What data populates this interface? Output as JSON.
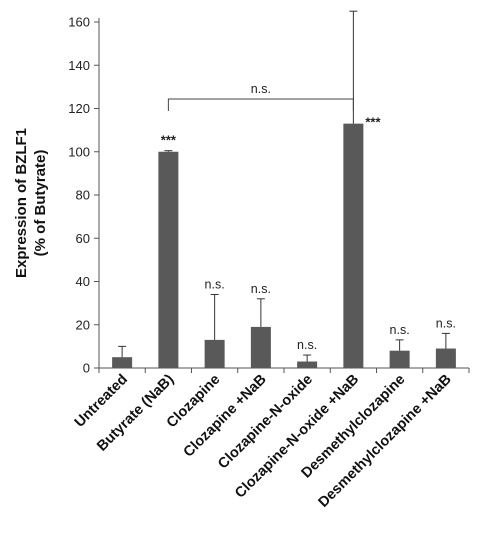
{
  "chart_data": {
    "type": "bar",
    "categories": [
      "Untreated",
      "Butyrate (NaB)",
      "Clozapine",
      "Clozapine +NaB",
      "Clozapine-N-oxide",
      "Clozapine-N-oxide +NaB",
      "Desmethylclozapine",
      "Desmethylclozapine +NaB"
    ],
    "values": [
      5,
      100,
      13,
      19,
      3,
      113,
      8,
      9
    ],
    "errors": [
      5,
      0.5,
      21,
      13,
      3,
      52,
      5,
      7
    ],
    "annotations": [
      "",
      "***",
      "n.s.",
      "n.s.",
      "n.s.",
      "***",
      "n.s.",
      "n.s."
    ],
    "bracket": {
      "from": 1,
      "to": 5,
      "label": "n.s."
    },
    "ylabel_line1": "Expression of BZLF1",
    "ylabel_line2": "(% of Butyrate)",
    "ylim": [
      0,
      160
    ],
    "yticks": [
      0,
      20,
      40,
      60,
      80,
      100,
      120,
      140,
      160
    ],
    "grid": false,
    "bar_color": "#595959"
  }
}
